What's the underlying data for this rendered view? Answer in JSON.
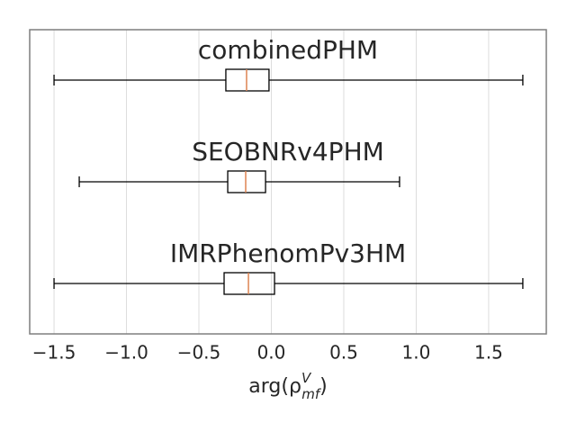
{
  "chart_data": {
    "type": "boxplot",
    "orientation": "horizontal",
    "xlim": [
      -1.668,
      1.898
    ],
    "xticks": [
      {
        "value": -1.5,
        "label": "−1.5"
      },
      {
        "value": -1.0,
        "label": "−1.0"
      },
      {
        "value": -0.5,
        "label": "−0.5"
      },
      {
        "value": 0.0,
        "label": "0.0"
      },
      0.5,
      {
        "value": 1.0,
        "label": "1.0"
      },
      1.5
    ],
    "grid": true,
    "box_color": "#000000",
    "median_color": "#dd8452",
    "xlabel": {
      "base": "arg(ρ",
      "sup": "V",
      "sub": "mf",
      "close": ")"
    },
    "series": [
      {
        "name": "combinedPHM",
        "whislo": -1.5,
        "q1": -0.314,
        "med": -0.171,
        "q3": -0.016,
        "whishi": 1.736
      },
      {
        "name": "SEOBNRv4PHM",
        "whislo": -1.326,
        "q1": -0.301,
        "med": -0.177,
        "q3": -0.04,
        "whishi": 0.885
      },
      {
        "name": "IMRPhenomPv3HM",
        "whislo": -1.5,
        "q1": -0.326,
        "med": -0.158,
        "q3": 0.022,
        "whishi": 1.736
      }
    ]
  }
}
